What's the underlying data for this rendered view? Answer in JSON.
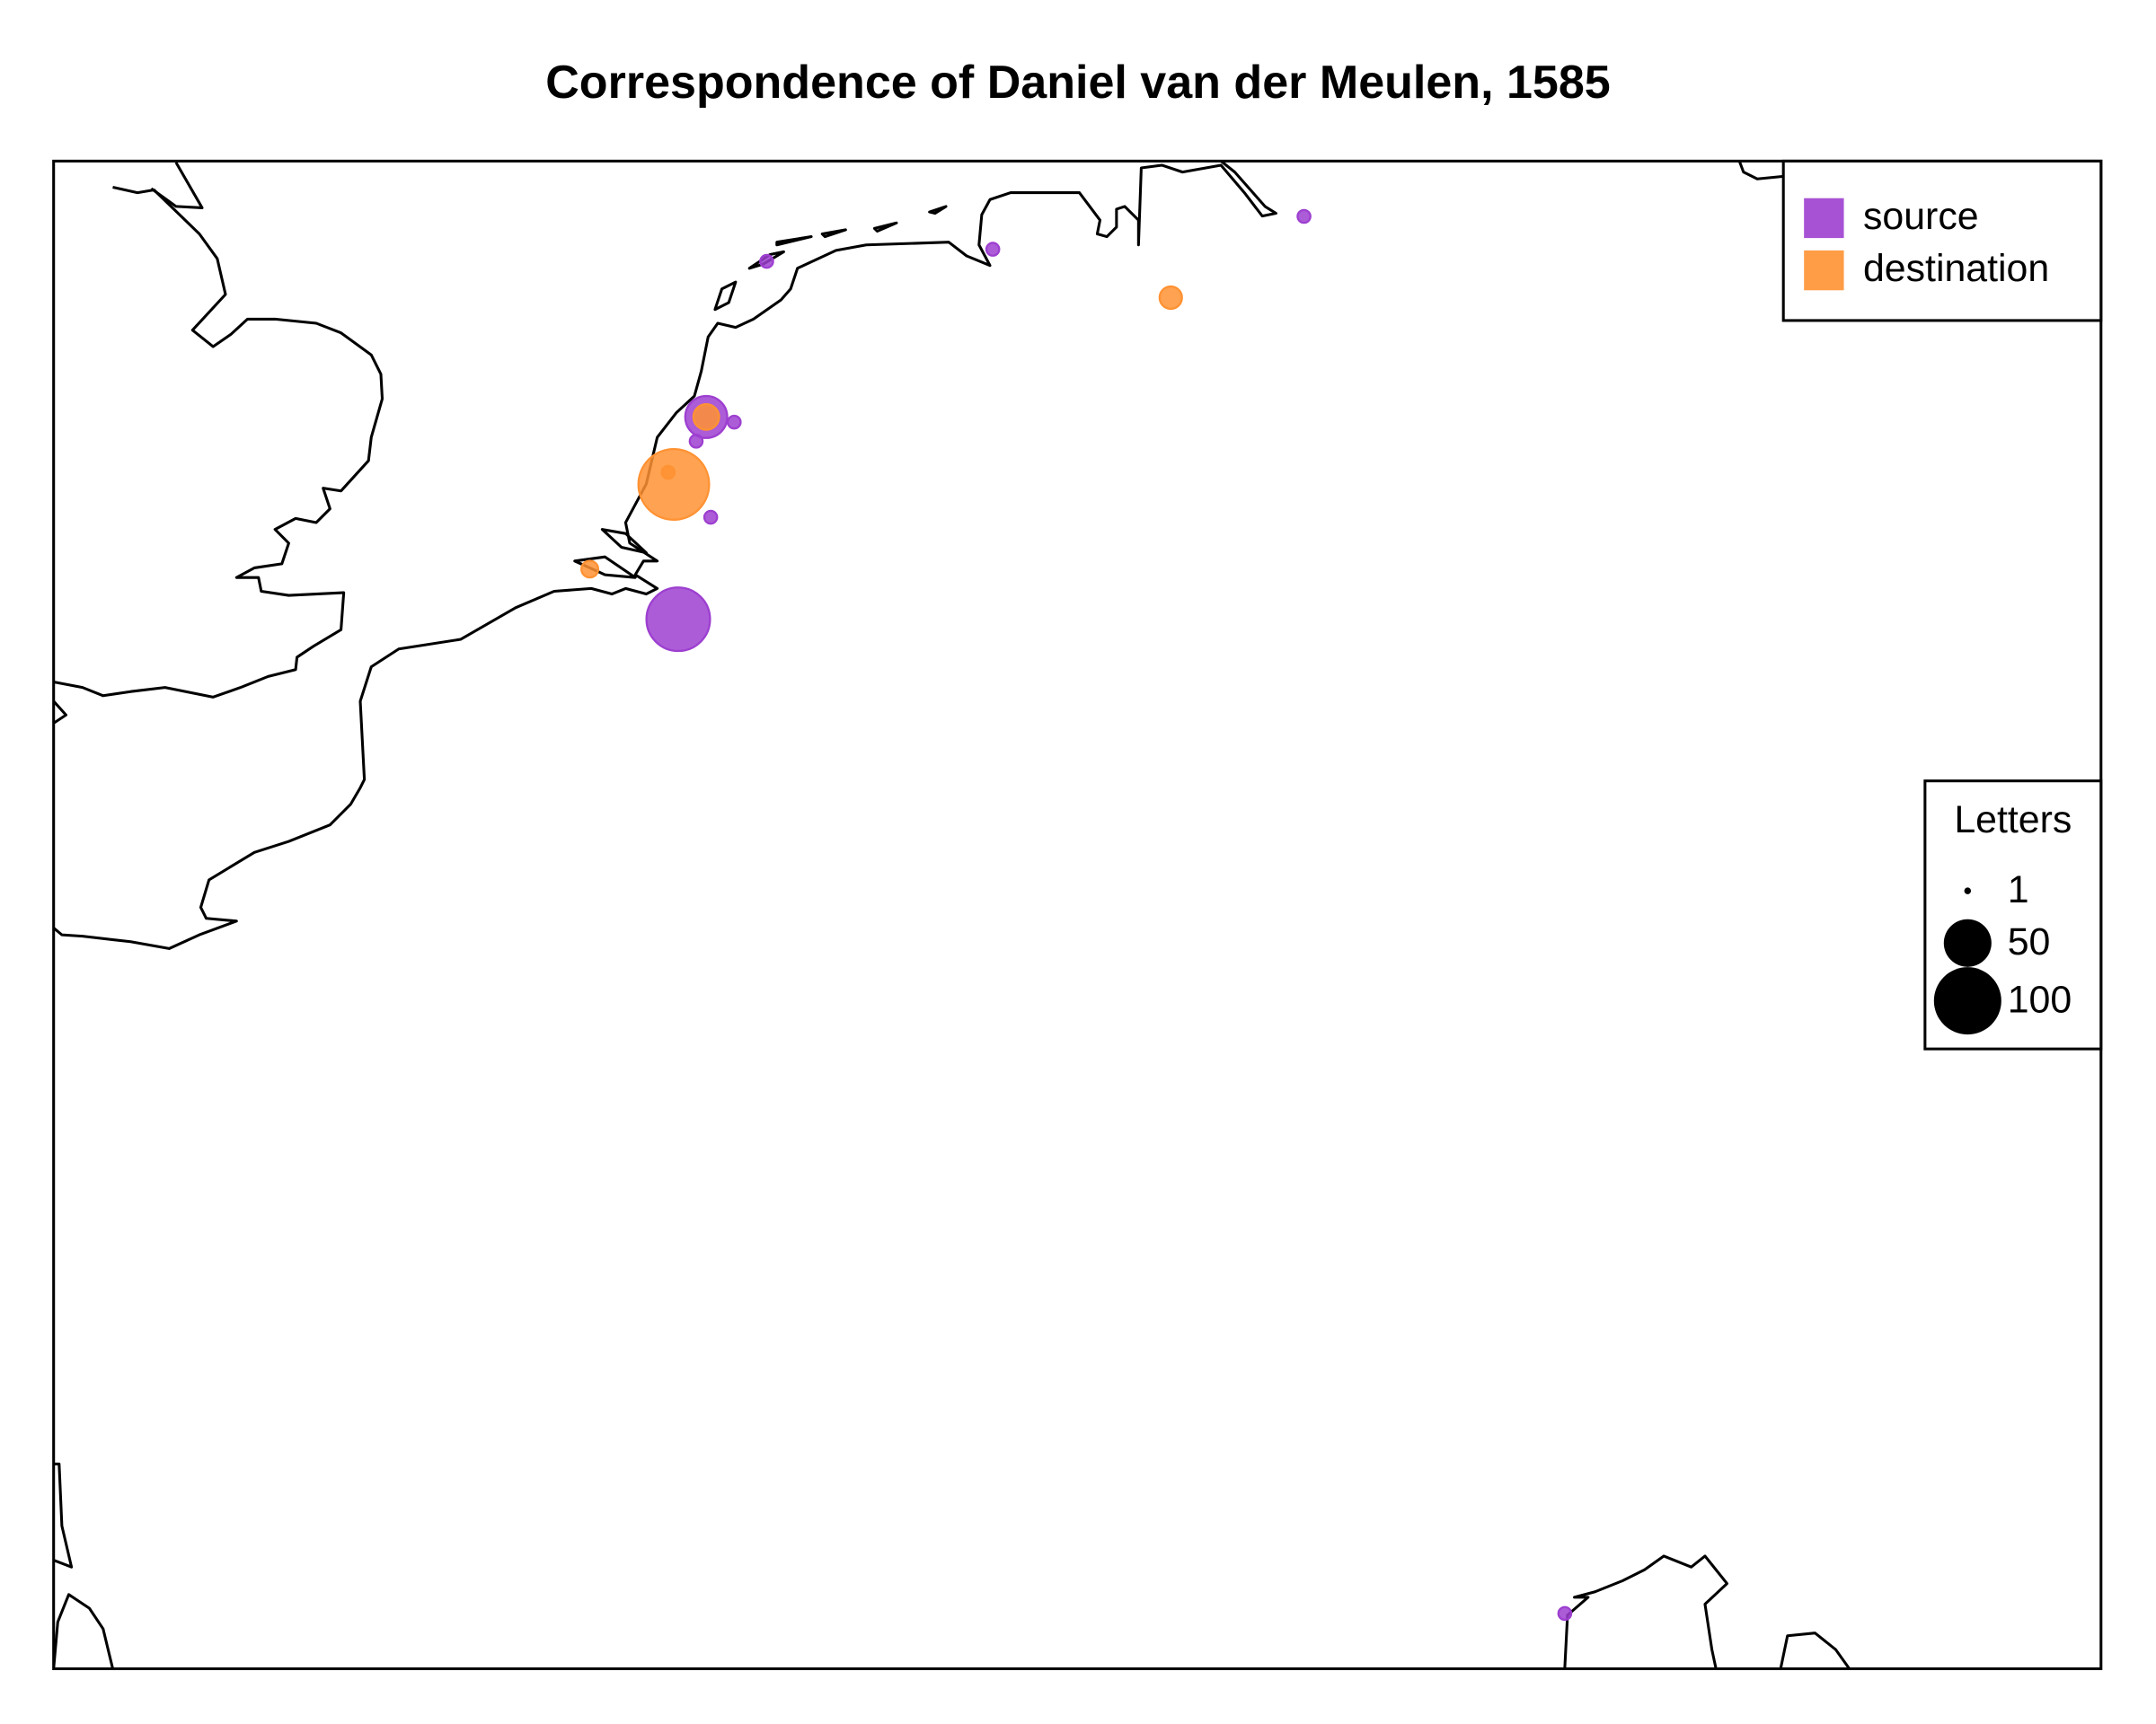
{
  "chart_data": {
    "type": "bubble_map",
    "title": "Correspondence of Daniel van der Meulen, 1585",
    "xlim": [
      -1.18,
      17.11
    ],
    "ylim": [
      45.15,
      53.87
    ],
    "legend_position": "topright",
    "series": [
      {
        "name": "source",
        "color": "#9d3fd0",
        "lon": [
          5.19,
          7.21,
          9.99,
          4.65,
          4.9,
          4.56,
          4.69,
          4.4,
          12.32
        ],
        "lat": [
          53.29,
          53.36,
          53.55,
          52.39,
          52.36,
          52.25,
          51.81,
          51.22,
          45.47
        ],
        "values": [
          2,
          2,
          2,
          33,
          2,
          2,
          2,
          80,
          2
        ]
      },
      {
        "name": "destination",
        "color": "#ff9233",
        "lon": [
          8.8,
          4.65,
          4.36,
          4.31,
          3.61
        ],
        "lat": [
          53.08,
          52.39,
          52.0,
          52.07,
          51.51
        ],
        "values": [
          8,
          11,
          100,
          2,
          4
        ]
      }
    ],
    "size_legend": {
      "title": "Letters",
      "values": [
        1,
        50,
        100
      ]
    }
  }
}
